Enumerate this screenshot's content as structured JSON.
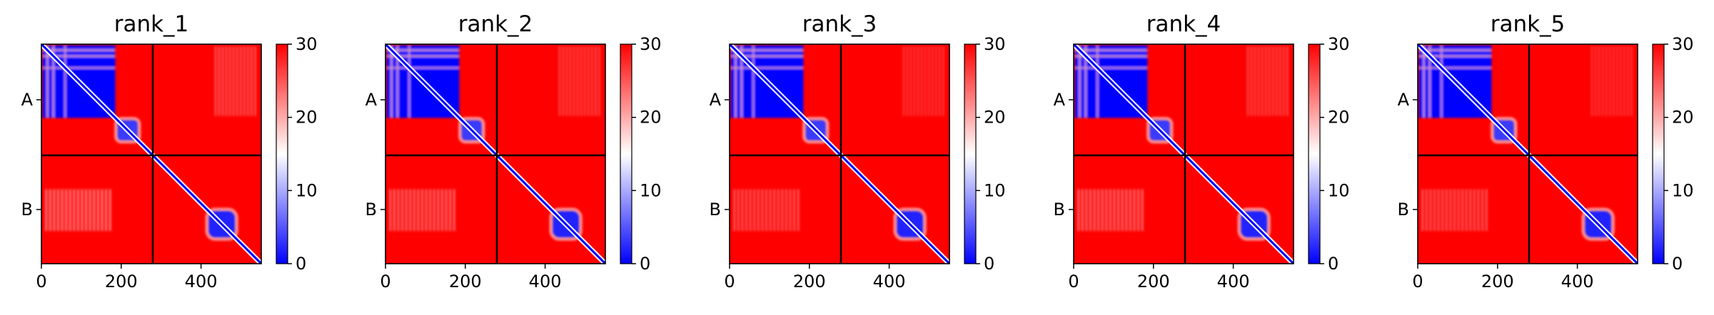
{
  "figure": {
    "panel_titles": [
      "rank_1",
      "rank_2",
      "rank_3",
      "rank_4",
      "rank_5"
    ]
  },
  "chart_data": [
    {
      "type": "heatmap",
      "title": "rank_1",
      "matrix_size": 551,
      "chain_boundaries": [
        279
      ],
      "y_chain_labels": [
        "A",
        "B"
      ],
      "x_ticks": [
        0,
        200,
        400
      ],
      "colorbar": {
        "range": [
          0,
          30
        ],
        "ticks": [
          0,
          10,
          20,
          30
        ],
        "colors": [
          "#0000ff",
          "#ffffff",
          "#ff0000"
        ]
      }
    },
    {
      "type": "heatmap",
      "title": "rank_2",
      "matrix_size": 551,
      "chain_boundaries": [
        279
      ],
      "y_chain_labels": [
        "A",
        "B"
      ],
      "x_ticks": [
        0,
        200,
        400
      ],
      "colorbar": {
        "range": [
          0,
          30
        ],
        "ticks": [
          0,
          10,
          20,
          30
        ],
        "colors": [
          "#0000ff",
          "#ffffff",
          "#ff0000"
        ]
      }
    },
    {
      "type": "heatmap",
      "title": "rank_3",
      "matrix_size": 551,
      "chain_boundaries": [
        279
      ],
      "y_chain_labels": [
        "A",
        "B"
      ],
      "x_ticks": [
        0,
        200,
        400
      ],
      "colorbar": {
        "range": [
          0,
          30
        ],
        "ticks": [
          0,
          10,
          20,
          30
        ],
        "colors": [
          "#0000ff",
          "#ffffff",
          "#ff0000"
        ]
      }
    },
    {
      "type": "heatmap",
      "title": "rank_4",
      "matrix_size": 551,
      "chain_boundaries": [
        279
      ],
      "y_chain_labels": [
        "A",
        "B"
      ],
      "x_ticks": [
        0,
        200,
        400
      ],
      "colorbar": {
        "range": [
          0,
          30
        ],
        "ticks": [
          0,
          10,
          20,
          30
        ],
        "colors": [
          "#0000ff",
          "#ffffff",
          "#ff0000"
        ]
      }
    },
    {
      "type": "heatmap",
      "title": "rank_5",
      "matrix_size": 551,
      "chain_boundaries": [
        279
      ],
      "y_chain_labels": [
        "A",
        "B"
      ],
      "x_ticks": [
        0,
        200,
        400
      ],
      "colorbar": {
        "range": [
          0,
          30
        ],
        "ticks": [
          0,
          10,
          20,
          30
        ],
        "colors": [
          "#0000ff",
          "#ffffff",
          "#ff0000"
        ]
      }
    }
  ]
}
